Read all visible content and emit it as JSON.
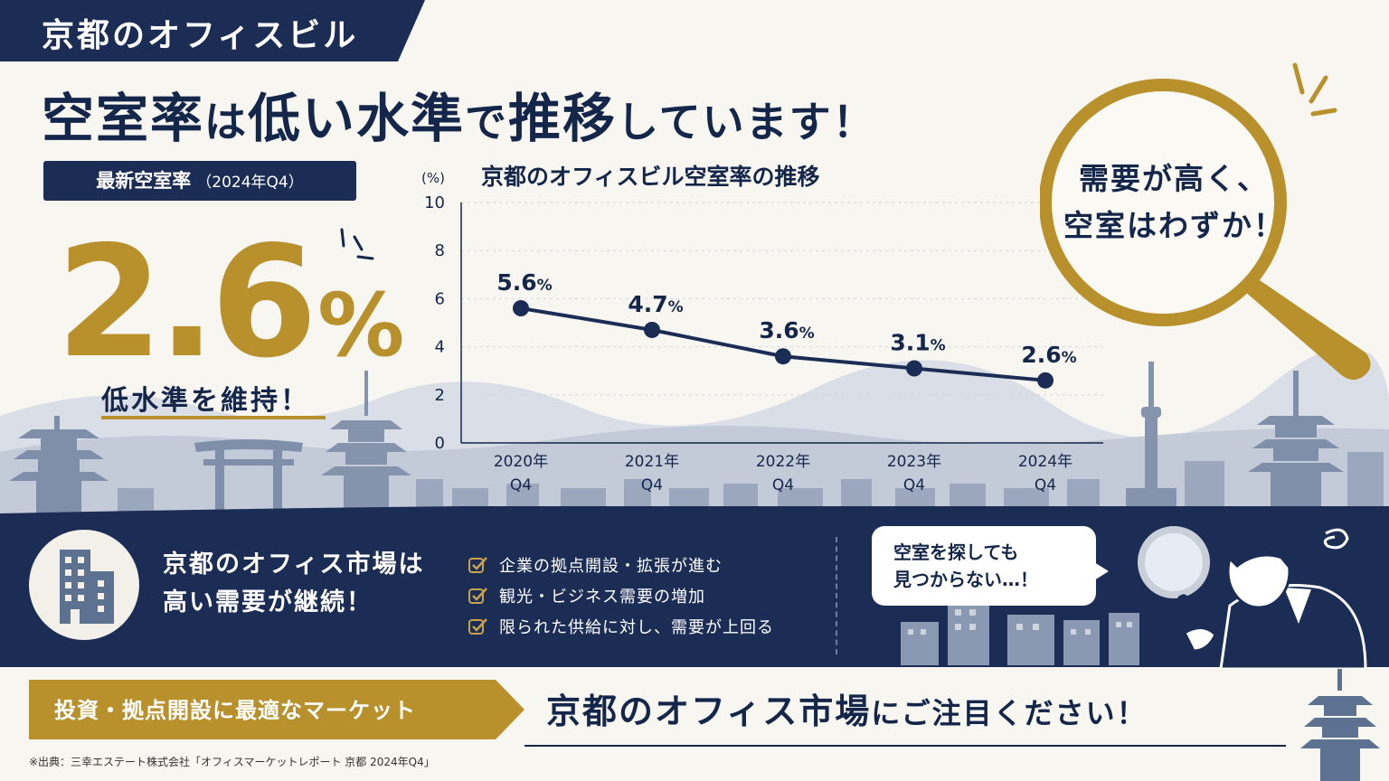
{
  "top_band": {
    "label": "京都のオフィスビル"
  },
  "headline": {
    "part1": "空室率",
    "part2": "は",
    "part3": "低い水準",
    "part4": "で",
    "part5": "推移",
    "part6": "しています！"
  },
  "latest": {
    "badge_label": "最新空室率",
    "badge_period": "（2024年Q4）",
    "value": "2.6",
    "unit": "%",
    "caption": "低水準を維持！"
  },
  "chart_data": {
    "type": "line",
    "title": "京都のオフィスビル空室率の推移",
    "ylabel": "(%)",
    "ylim": [
      0,
      10
    ],
    "yticks": [
      "0",
      "2",
      "4",
      "6",
      "8",
      "10"
    ],
    "categories": [
      "2020年\nQ4",
      "2021年\nQ4",
      "2022年\nQ4",
      "2023年\nQ4",
      "2024年\nQ4"
    ],
    "values": [
      5.6,
      4.7,
      3.6,
      3.1,
      2.6
    ],
    "data_labels": [
      "5.6",
      "4.7",
      "3.6",
      "3.1",
      "2.6"
    ],
    "data_label_unit": "%",
    "grid": true,
    "color": "#1b2d55"
  },
  "bubble": {
    "line1": "需要が高く、",
    "line2": "空室はわずか！"
  },
  "market": {
    "title_line1": "京都のオフィス市場は",
    "title_line2": "高い需要が継続！",
    "points": [
      "企業の拠点開設・拡張が進む",
      "観光・ビジネス需要の増加",
      "限られた供給に対し、需要が上回る"
    ]
  },
  "speech": {
    "line1": "空室を探しても",
    "line2": "見つからない…！"
  },
  "invest": {
    "label": "投資・拠点開設に最適なマーケット"
  },
  "cta": {
    "part1": "京都のオフィス市場",
    "part2": "にご注目ください！"
  },
  "source": "※出典：三幸エステート株式会社「オフィスマーケットレポート 京都 2024年Q4」",
  "colors": {
    "navy": "#1b2d55",
    "gold": "#b8902c",
    "background": "#f8f6f1"
  }
}
